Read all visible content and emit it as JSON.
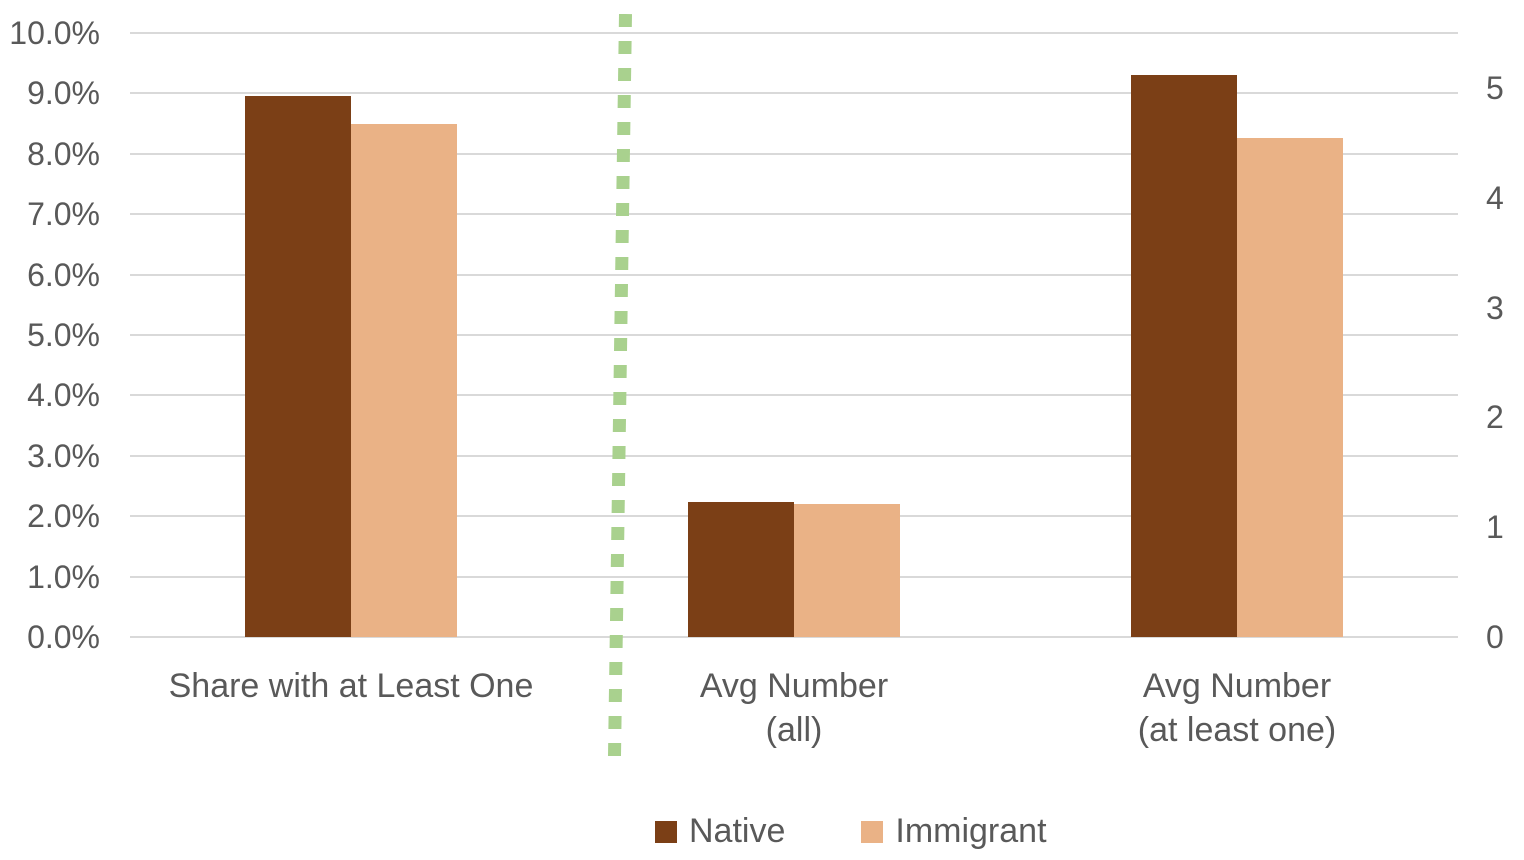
{
  "chart_data": {
    "type": "bar",
    "title": "",
    "categories": [
      "Share with at Least One",
      "Avg Number\n(all)",
      "Avg Number\n(at least one)"
    ],
    "series": [
      {
        "name": "Native",
        "color": "#7B3F16",
        "values": [
          8.95,
          1.23,
          5.12
        ]
      },
      {
        "name": "Immigrant",
        "color": "#EAB286",
        "values": [
          8.5,
          1.21,
          4.54
        ]
      }
    ],
    "value_units": [
      "percent",
      "count",
      "count"
    ],
    "left_axis": {
      "label": "",
      "min": 0,
      "max": 10,
      "unit": "%",
      "tick_labels": [
        "0.0%",
        "1.0%",
        "2.0%",
        "3.0%",
        "4.0%",
        "5.0%",
        "6.0%",
        "7.0%",
        "8.0%",
        "9.0%",
        "10.0%"
      ]
    },
    "right_axis": {
      "label": "",
      "min": 0,
      "max": 5.5,
      "tick_labels": [
        "0",
        "1",
        "2",
        "3",
        "4",
        "5"
      ]
    },
    "separator": {
      "after_category": "Share with at Least One",
      "style": "dotted",
      "color": "#A9D18E"
    },
    "legend": {
      "position": "bottom",
      "entries": [
        "Native",
        "Immigrant"
      ]
    },
    "grid": true,
    "gridline_color": "#D9D9D9",
    "text_color": "#595959",
    "background_color": "#FFFFFF"
  }
}
